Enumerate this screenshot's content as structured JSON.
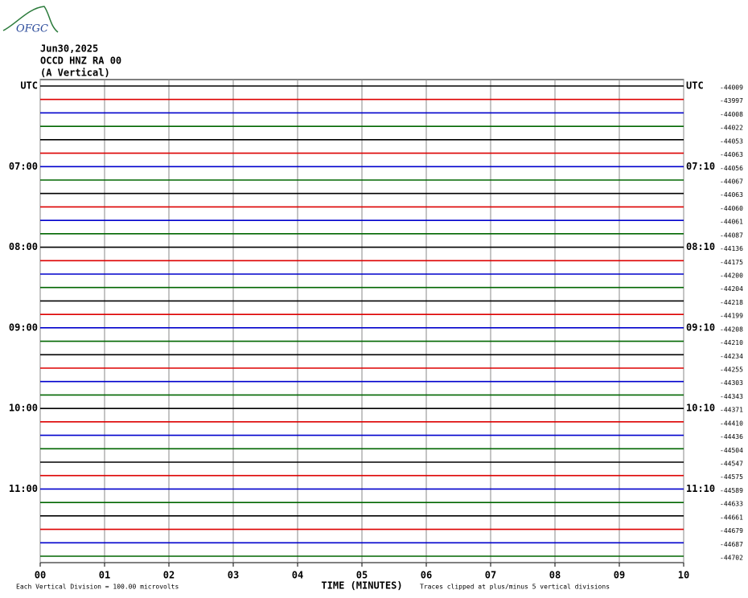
{
  "logo": "OFGC",
  "header": {
    "date": "Jun30,2025",
    "station": "OCCD HNZ RA 00",
    "component": "(A Vertical)"
  },
  "chart_data": {
    "type": "helicorder",
    "xlabel": "TIME (MINUTES)",
    "xlim": [
      0,
      10
    ],
    "xticks": [
      {
        "value": 0,
        "label": "00"
      },
      {
        "value": 1,
        "label": "01"
      },
      {
        "value": 2,
        "label": "02"
      },
      {
        "value": 3,
        "label": "03"
      },
      {
        "value": 4,
        "label": "04"
      },
      {
        "value": 5,
        "label": "05"
      },
      {
        "value": 6,
        "label": "06"
      },
      {
        "value": 7,
        "label": "07"
      },
      {
        "value": 8,
        "label": "08"
      },
      {
        "value": 9,
        "label": "09"
      },
      {
        "value": 10,
        "label": "10"
      }
    ],
    "grid": true,
    "colors": [
      "#000000",
      "#dd0000",
      "#0000cc",
      "#006600"
    ],
    "left_labels": [
      "UTC",
      null,
      null,
      null,
      null,
      null,
      "07:00",
      null,
      null,
      null,
      null,
      null,
      "08:00",
      null,
      null,
      null,
      null,
      null,
      "09:00",
      null,
      null,
      null,
      null,
      null,
      "10:00",
      null,
      null,
      null,
      null,
      null,
      "11:00",
      null,
      null,
      null,
      null,
      null
    ],
    "right_labels": [
      "UTC",
      null,
      null,
      null,
      null,
      null,
      "07:10",
      null,
      null,
      null,
      null,
      null,
      "08:10",
      null,
      null,
      null,
      null,
      null,
      "09:10",
      null,
      null,
      null,
      null,
      null,
      "10:10",
      null,
      null,
      null,
      null,
      null,
      "11:10",
      null,
      null,
      null,
      null,
      null
    ],
    "offsets": [
      "-44009",
      "-43997",
      "-44008",
      "-44022",
      "-44053",
      "-44063",
      "-44056",
      "-44067",
      "-44063",
      "-44060",
      "-44061",
      "-44087",
      "-44136",
      "-44175",
      "-44200",
      "-44204",
      "-44218",
      "-44199",
      "-44208",
      "-44210",
      "-44234",
      "-44255",
      "-44303",
      "-44343",
      "-44371",
      "-44410",
      "-44436",
      "-44504",
      "-44547",
      "-44575",
      "-44589",
      "-44633",
      "-44661",
      "-44679",
      "-44687",
      "-44702"
    ]
  },
  "footer": {
    "scale": "Each Vertical Division =  100.00 microvolts",
    "clip": "Traces clipped at plus/minus 5 vertical divisions"
  }
}
